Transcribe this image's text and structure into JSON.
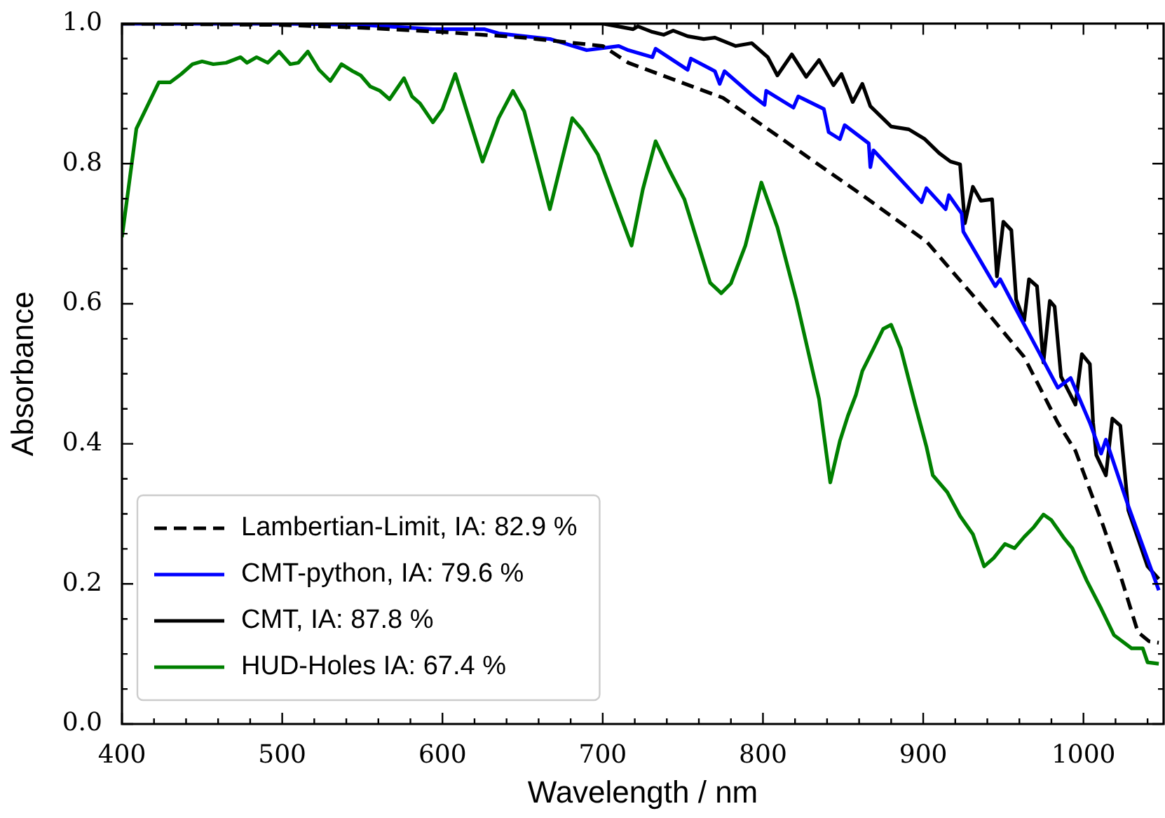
{
  "chart_data": {
    "type": "line",
    "xlabel": "Wavelength / nm",
    "ylabel": "Absorbance",
    "xlim": [
      400,
      1050
    ],
    "ylim": [
      0,
      1
    ],
    "xticks": [
      400,
      {
        "value": 420,
        "label": null
      },
      {
        "value": 440,
        "label": null
      },
      {
        "value": 460,
        "label": null
      },
      {
        "value": 480,
        "label": null
      },
      500,
      {
        "value": 520,
        "label": null
      },
      {
        "value": 540,
        "label": null
      },
      {
        "value": 560,
        "label": null
      },
      {
        "value": 580,
        "label": null
      },
      600,
      {
        "value": 620,
        "label": null
      },
      {
        "value": 640,
        "label": null
      },
      {
        "value": 660,
        "label": null
      },
      {
        "value": 680,
        "label": null
      },
      700,
      {
        "value": 720,
        "label": null
      },
      {
        "value": 740,
        "label": null
      },
      {
        "value": 760,
        "label": null
      },
      {
        "value": 780,
        "label": null
      },
      800,
      {
        "value": 820,
        "label": null
      },
      {
        "value": 840,
        "label": null
      },
      {
        "value": 860,
        "label": null
      },
      {
        "value": 880,
        "label": null
      },
      900,
      {
        "value": 920,
        "label": null
      },
      {
        "value": 940,
        "label": null
      },
      {
        "value": 960,
        "label": null
      },
      {
        "value": 980,
        "label": null
      },
      1000,
      {
        "value": 1020,
        "label": null
      },
      {
        "value": 1040,
        "label": null
      }
    ],
    "yticks": [
      {
        "value": 0,
        "label": "0.0"
      },
      {
        "value": 0.05,
        "label": null
      },
      {
        "value": 0.1,
        "label": null
      },
      {
        "value": 0.15,
        "label": null
      },
      0.2,
      {
        "value": 0.25,
        "label": null
      },
      {
        "value": 0.3,
        "label": null
      },
      {
        "value": 0.35,
        "label": null
      },
      0.4,
      {
        "value": 0.45,
        "label": null
      },
      {
        "value": 0.5,
        "label": null
      },
      {
        "value": 0.55,
        "label": null
      },
      0.6,
      {
        "value": 0.65,
        "label": null
      },
      {
        "value": 0.7,
        "label": null
      },
      {
        "value": 0.75,
        "label": null
      },
      0.8,
      {
        "value": 0.85,
        "label": null
      },
      {
        "value": 0.9,
        "label": null
      },
      {
        "value": 0.95,
        "label": null
      },
      {
        "value": 1,
        "label": "1.0"
      }
    ],
    "legend": "bottom left",
    "series": [
      {
        "name": "Lambertian-Limit, IA: 82.9 %",
        "color": "#000000",
        "line_style": "dashed",
        "x": [
          400,
          500,
          550,
          600,
          650,
          700,
          716,
          775,
          812,
          862,
          902,
          934,
          963,
          984,
          995,
          1012,
          1024,
          1034,
          1041,
          1047
        ],
        "values": [
          1.0,
          0.998,
          0.994,
          0.988,
          0.98,
          0.968,
          0.944,
          0.894,
          0.835,
          0.755,
          0.689,
          0.604,
          0.524,
          0.43,
          0.39,
          0.285,
          0.205,
          0.131,
          0.118,
          0.116
        ]
      },
      {
        "name": "CMT-python, IA: 79.6 %",
        "color": "#0000ff",
        "x": [
          400,
          500,
          551,
          594,
          626,
          635,
          667,
          690,
          710,
          716,
          731,
          733,
          753,
          755,
          770,
          773,
          776,
          793,
          801,
          802,
          819,
          822,
          838,
          841,
          848,
          851,
          866,
          867,
          869,
          899,
          902,
          914,
          916,
          924,
          925,
          945,
          948,
          957,
          971,
          984,
          992,
          1004,
          1011,
          1014,
          1028,
          1047
        ],
        "values": [
          1.0,
          1.0,
          0.998,
          0.992,
          0.992,
          0.986,
          0.978,
          0.962,
          0.968,
          0.962,
          0.952,
          0.964,
          0.934,
          0.95,
          0.932,
          0.914,
          0.932,
          0.898,
          0.884,
          0.904,
          0.88,
          0.896,
          0.878,
          0.845,
          0.835,
          0.855,
          0.829,
          0.795,
          0.819,
          0.745,
          0.765,
          0.735,
          0.755,
          0.729,
          0.703,
          0.625,
          0.635,
          0.596,
          0.536,
          0.48,
          0.494,
          0.43,
          0.386,
          0.406,
          0.311,
          0.191
        ]
      },
      {
        "name": "CMT, IA: 87.8 %",
        "color": "#000000",
        "x": [
          400,
          600,
          700,
          719,
          722,
          731,
          738,
          744,
          753,
          763,
          770,
          783,
          793,
          803,
          809,
          818,
          827,
          835,
          844,
          849,
          856,
          862,
          867,
          880,
          891,
          901,
          910,
          917,
          923,
          926,
          931,
          936,
          943,
          946,
          950,
          955,
          958,
          963,
          966,
          971,
          975,
          979,
          982,
          986,
          995,
          999,
          1004,
          1006,
          1008,
          1014,
          1018,
          1023,
          1028,
          1040,
          1047
        ],
        "values": [
          1.0,
          1.0,
          1.0,
          0.992,
          0.996,
          0.988,
          0.984,
          0.99,
          0.982,
          0.978,
          0.98,
          0.968,
          0.972,
          0.952,
          0.926,
          0.956,
          0.924,
          0.948,
          0.912,
          0.928,
          0.888,
          0.914,
          0.882,
          0.853,
          0.849,
          0.835,
          0.815,
          0.803,
          0.799,
          0.715,
          0.767,
          0.747,
          0.749,
          0.639,
          0.717,
          0.705,
          0.606,
          0.576,
          0.635,
          0.625,
          0.516,
          0.604,
          0.596,
          0.496,
          0.456,
          0.528,
          0.514,
          0.43,
          0.384,
          0.355,
          0.436,
          0.426,
          0.305,
          0.225,
          0.207
        ]
      },
      {
        "name": "HUD-Holes IA: 67.4 %",
        "color": "#008000",
        "x": [
          400,
          409,
          423,
          430,
          437,
          444,
          450,
          457,
          465,
          474,
          478,
          484,
          491,
          498,
          505,
          510,
          516,
          523,
          530,
          537,
          544,
          549,
          555,
          561,
          567,
          576,
          581,
          586,
          594,
          600,
          608,
          616,
          625,
          635,
          644,
          651,
          667,
          681,
          687,
          697,
          718,
          725,
          733,
          742,
          751,
          767,
          774,
          780,
          789,
          799,
          809,
          821,
          835,
          842,
          848,
          853,
          858,
          862,
          869,
          875,
          880,
          886,
          895,
          902,
          906,
          915,
          923,
          931,
          938,
          944,
          951,
          957,
          963,
          969,
          975,
          980,
          988,
          993,
          1002,
          1011,
          1019,
          1030,
          1037,
          1040,
          1047
        ],
        "values": [
          0.695,
          0.85,
          0.916,
          0.916,
          0.928,
          0.942,
          0.946,
          0.942,
          0.944,
          0.952,
          0.944,
          0.952,
          0.944,
          0.96,
          0.942,
          0.944,
          0.96,
          0.934,
          0.918,
          0.942,
          0.932,
          0.926,
          0.91,
          0.904,
          0.892,
          0.922,
          0.896,
          0.886,
          0.859,
          0.878,
          0.928,
          0.869,
          0.803,
          0.865,
          0.904,
          0.875,
          0.735,
          0.865,
          0.849,
          0.813,
          0.683,
          0.763,
          0.832,
          0.789,
          0.749,
          0.63,
          0.615,
          0.629,
          0.683,
          0.773,
          0.709,
          0.604,
          0.464,
          0.345,
          0.404,
          0.44,
          0.47,
          0.504,
          0.536,
          0.564,
          0.57,
          0.536,
          0.456,
          0.396,
          0.355,
          0.331,
          0.297,
          0.271,
          0.225,
          0.237,
          0.257,
          0.251,
          0.267,
          0.281,
          0.299,
          0.291,
          0.265,
          0.251,
          0.205,
          0.165,
          0.127,
          0.108,
          0.108,
          0.088,
          0.086
        ]
      }
    ]
  }
}
